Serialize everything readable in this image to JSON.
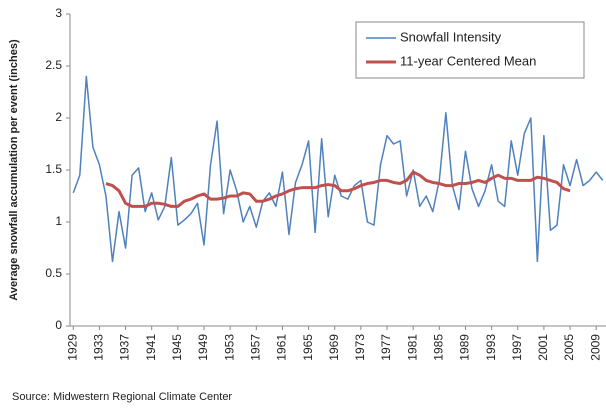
{
  "chart_data": {
    "type": "line",
    "y_label": "Average snowfall accumulation per event (inches)",
    "source": "Source: Midwestern Regional Climate Center",
    "x": [
      1929,
      1930,
      1931,
      1932,
      1933,
      1934,
      1935,
      1936,
      1937,
      1938,
      1939,
      1940,
      1941,
      1942,
      1943,
      1944,
      1945,
      1946,
      1947,
      1948,
      1949,
      1950,
      1951,
      1952,
      1953,
      1954,
      1955,
      1956,
      1957,
      1958,
      1959,
      1960,
      1961,
      1962,
      1963,
      1964,
      1965,
      1966,
      1967,
      1968,
      1969,
      1970,
      1971,
      1972,
      1973,
      1974,
      1975,
      1976,
      1977,
      1978,
      1979,
      1980,
      1981,
      1982,
      1983,
      1984,
      1985,
      1986,
      1987,
      1988,
      1989,
      1990,
      1991,
      1992,
      1993,
      1994,
      1995,
      1996,
      1997,
      1998,
      1999,
      2000,
      2001,
      2002,
      2003,
      2004,
      2005,
      2006,
      2007,
      2008,
      2009,
      2010
    ],
    "series": [
      {
        "name": "Snowfall Intensity",
        "color": "#4f81bd",
        "values": [
          1.28,
          1.45,
          2.4,
          1.72,
          1.55,
          1.25,
          0.62,
          1.1,
          0.75,
          1.45,
          1.52,
          1.1,
          1.28,
          1.02,
          1.15,
          1.62,
          0.97,
          1.02,
          1.08,
          1.18,
          0.78,
          1.55,
          1.97,
          1.08,
          1.5,
          1.3,
          1.0,
          1.15,
          0.95,
          1.2,
          1.28,
          1.15,
          1.48,
          0.88,
          1.38,
          1.55,
          1.78,
          0.9,
          1.8,
          1.05,
          1.45,
          1.25,
          1.22,
          1.35,
          1.4,
          1.0,
          0.97,
          1.55,
          1.83,
          1.75,
          1.78,
          1.25,
          1.5,
          1.15,
          1.25,
          1.1,
          1.4,
          2.05,
          1.35,
          1.12,
          1.68,
          1.32,
          1.15,
          1.3,
          1.55,
          1.2,
          1.15,
          1.78,
          1.45,
          1.85,
          2.0,
          0.62,
          1.83,
          0.92,
          0.97,
          1.55,
          1.35,
          1.6,
          1.35,
          1.4,
          1.48,
          1.4
        ]
      },
      {
        "name": "11-year Centered Mean",
        "color": "#c0504d",
        "values": [
          null,
          null,
          null,
          null,
          null,
          1.37,
          1.35,
          1.3,
          1.18,
          1.15,
          1.15,
          1.15,
          1.18,
          1.18,
          1.17,
          1.15,
          1.15,
          1.2,
          1.22,
          1.25,
          1.27,
          1.22,
          1.22,
          1.23,
          1.25,
          1.25,
          1.28,
          1.27,
          1.2,
          1.2,
          1.22,
          1.25,
          1.27,
          1.3,
          1.32,
          1.33,
          1.33,
          1.33,
          1.35,
          1.36,
          1.35,
          1.3,
          1.3,
          1.32,
          1.35,
          1.37,
          1.38,
          1.4,
          1.4,
          1.38,
          1.37,
          1.4,
          1.48,
          1.45,
          1.4,
          1.38,
          1.37,
          1.35,
          1.35,
          1.37,
          1.37,
          1.38,
          1.4,
          1.38,
          1.42,
          1.45,
          1.42,
          1.42,
          1.4,
          1.4,
          1.4,
          1.43,
          1.42,
          1.4,
          1.38,
          1.32,
          1.3,
          null,
          null,
          null,
          null,
          null
        ]
      }
    ],
    "xlim": [
      1928.5,
      2010.5
    ],
    "xticks": [
      1929,
      1933,
      1937,
      1941,
      1945,
      1949,
      1953,
      1957,
      1961,
      1965,
      1969,
      1973,
      1977,
      1981,
      1985,
      1989,
      1993,
      1997,
      2001,
      2005,
      2009
    ],
    "ylim": [
      0,
      3
    ],
    "yticks": [
      0,
      0.5,
      1,
      1.5,
      2,
      2.5,
      3
    ],
    "legend": "upper right"
  }
}
